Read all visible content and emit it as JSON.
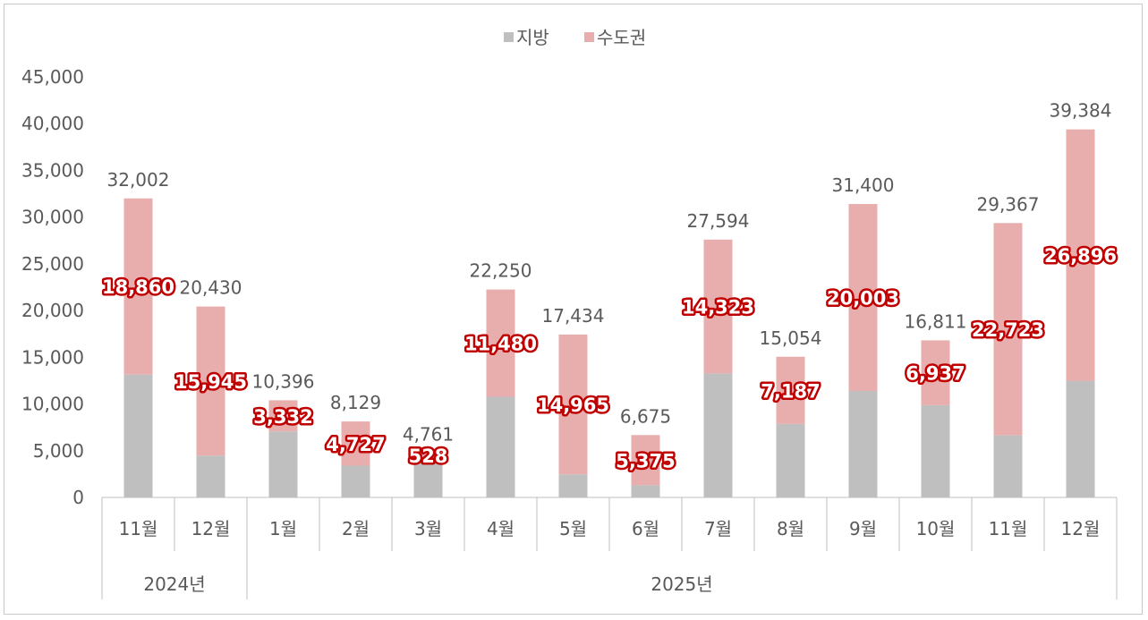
{
  "chart_data": {
    "type": "bar",
    "stacked": true,
    "categories": [
      "11월",
      "12월",
      "1월",
      "2월",
      "3월",
      "4월",
      "5월",
      "6월",
      "7월",
      "8월",
      "9월",
      "10월",
      "11월",
      "12월"
    ],
    "year_groups": [
      {
        "label": "2024년",
        "start": 0,
        "end": 1
      },
      {
        "label": "2025년",
        "start": 2,
        "end": 13
      }
    ],
    "series": [
      {
        "name": "지방",
        "color": "#bfbfbf",
        "values": [
          13142,
          4485,
          7064,
          3402,
          4233,
          10770,
          2469,
          1300,
          13271,
          7867,
          11397,
          9874,
          6644,
          12488
        ]
      },
      {
        "name": "수도권",
        "color": "#e8adad",
        "values": [
          18860,
          15945,
          3332,
          4727,
          528,
          11480,
          14965,
          5375,
          14323,
          7187,
          20003,
          6937,
          22723,
          26896
        ]
      }
    ],
    "totals": [
      32002,
      20430,
      10396,
      8129,
      4761,
      22250,
      17434,
      6675,
      27594,
      15054,
      31400,
      16811,
      29367,
      39384
    ],
    "total_labels": [
      "32,002",
      "20,430",
      "10,396",
      "8,129",
      "4,761",
      "22,250",
      "17,434",
      "6,675",
      "27,594",
      "15,054",
      "31,400",
      "16,811",
      "29,367",
      "39,384"
    ],
    "inner_labels": [
      "18,860",
      "15,945",
      "3,332",
      "4,727",
      "528",
      "11,480",
      "14,965",
      "5,375",
      "14,323",
      "7,187",
      "20,003",
      "6,937",
      "22,723",
      "26,896"
    ],
    "ylim": [
      0,
      45000
    ],
    "yticks": [
      0,
      5000,
      10000,
      15000,
      20000,
      25000,
      30000,
      35000,
      40000,
      45000
    ],
    "ytick_labels": [
      "0",
      "5,000",
      "10,000",
      "15,000",
      "20,000",
      "25,000",
      "30,000",
      "35,000",
      "40,000",
      "45,000"
    ],
    "grid": false,
    "legend_position": "top-center",
    "title": "",
    "xlabel": "",
    "ylabel": ""
  }
}
